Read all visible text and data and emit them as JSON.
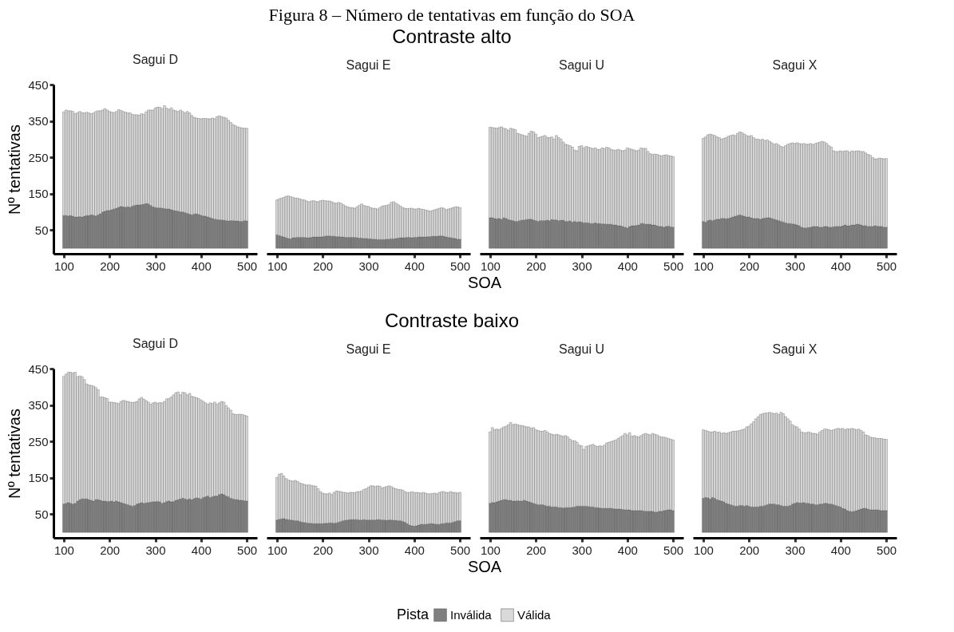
{
  "chart_data": [
    {
      "type": "bar",
      "stacked": true,
      "title": "Sagui D",
      "ylabel": "Nº tentativas",
      "legend": "bottom",
      "legend_title": "Pista",
      "annotations": [
        "Figura 8 – Número de tentativas em função do SOA",
        "Contraste alto",
        "SOA"
      ],
      "xlim": [
        77.5,
        522.5
      ],
      "xticks": [
        100,
        200,
        300,
        400,
        500
      ],
      "ylim": [
        -15,
        450
      ],
      "yticks": [
        50,
        150,
        250,
        350,
        450
      ],
      "x": [
        100,
        105,
        110,
        115,
        120,
        125,
        130,
        135,
        140,
        145,
        150,
        155,
        160,
        165,
        170,
        175,
        180,
        185,
        190,
        195,
        200,
        205,
        210,
        215,
        220,
        225,
        230,
        235,
        240,
        245,
        250,
        255,
        260,
        265,
        270,
        275,
        280,
        285,
        290,
        295,
        300,
        305,
        310,
        315,
        320,
        325,
        330,
        335,
        340,
        345,
        350,
        355,
        360,
        365,
        370,
        375,
        380,
        385,
        390,
        395,
        400,
        405,
        410,
        415,
        420,
        425,
        430,
        435,
        440,
        445,
        450,
        455,
        460,
        465,
        470,
        475,
        480,
        485,
        490,
        495,
        500
      ],
      "series": [
        {
          "name": "Inválida",
          "color": "#7f7f7f",
          "values": [
            90,
            90,
            89,
            90,
            88,
            86,
            86,
            87,
            86,
            88,
            90,
            90,
            92,
            91,
            89,
            92,
            95,
            100,
            102,
            104,
            104,
            106,
            108,
            110,
            113,
            115,
            114,
            113,
            114,
            113,
            116,
            118,
            119,
            119,
            120,
            121,
            123,
            122,
            118,
            114,
            112,
            111,
            111,
            110,
            109,
            108,
            108,
            106,
            104,
            103,
            102,
            100,
            100,
            98,
            96,
            94,
            92,
            94,
            95,
            93,
            91,
            89,
            88,
            86,
            84,
            82,
            80,
            79,
            78,
            78,
            77,
            76,
            75,
            76,
            76,
            75,
            75,
            74,
            74,
            76,
            75
          ]
        },
        {
          "name": "Válida",
          "color": "#d9d9d9",
          "values": [
            285,
            290,
            289,
            288,
            288,
            284,
            287,
            289,
            287,
            284,
            284,
            282,
            278,
            281,
            287,
            286,
            283,
            280,
            282,
            276,
            272,
            268,
            265,
            266,
            268,
            264,
            262,
            261,
            258,
            259,
            252,
            249,
            248,
            247,
            250,
            247,
            252,
            258,
            262,
            266,
            274,
            277,
            277,
            274,
            283,
            277,
            274,
            280,
            276,
            275,
            274,
            280,
            276,
            274,
            280,
            278,
            273,
            266,
            263,
            264,
            265,
            268,
            269,
            270,
            272,
            276,
            276,
            283,
            286,
            284,
            283,
            282,
            277,
            270,
            264,
            262,
            259,
            258,
            257,
            254,
            255
          ]
        }
      ]
    },
    {
      "type": "bar",
      "stacked": true,
      "title": "Sagui E",
      "tick_labels": "x",
      "xlim": [
        77.5,
        522.5
      ],
      "xticks": [
        100,
        200,
        300,
        400,
        500
      ],
      "ylim": [
        -15,
        450
      ],
      "x": [
        100,
        105,
        110,
        115,
        120,
        125,
        130,
        135,
        140,
        145,
        150,
        155,
        160,
        165,
        170,
        175,
        180,
        185,
        190,
        195,
        200,
        205,
        210,
        215,
        220,
        225,
        230,
        235,
        240,
        245,
        250,
        255,
        260,
        265,
        270,
        275,
        280,
        285,
        290,
        295,
        300,
        305,
        310,
        315,
        320,
        325,
        330,
        335,
        340,
        345,
        350,
        355,
        360,
        365,
        370,
        375,
        380,
        385,
        390,
        395,
        400,
        405,
        410,
        415,
        420,
        425,
        430,
        435,
        440,
        445,
        450,
        455,
        460,
        465,
        470,
        475,
        480,
        485,
        490,
        495,
        500
      ],
      "series": [
        {
          "name": "Inválida",
          "color": "#7f7f7f",
          "values": [
            37,
            35,
            33,
            31,
            29,
            27,
            26,
            29,
            29,
            30,
            30,
            30,
            30,
            29,
            29,
            30,
            31,
            31,
            31,
            31,
            32,
            33,
            34,
            34,
            33,
            33,
            32,
            32,
            31,
            31,
            30,
            30,
            30,
            30,
            30,
            29,
            28,
            28,
            27,
            27,
            26,
            26,
            25,
            25,
            24,
            24,
            24,
            24,
            25,
            25,
            26,
            26,
            27,
            28,
            29,
            29,
            29,
            30,
            30,
            29,
            30,
            30,
            31,
            31,
            31,
            31,
            32,
            32,
            33,
            33,
            33,
            34,
            34,
            33,
            31,
            30,
            29,
            28,
            27,
            25,
            25
          ]
        },
        {
          "name": "Válida",
          "color": "#d9d9d9",
          "values": [
            96,
            101,
            105,
            109,
            114,
            117,
            116,
            111,
            109,
            108,
            106,
            104,
            103,
            101,
            99,
            100,
            100,
            98,
            97,
            100,
            100,
            98,
            96,
            96,
            95,
            92,
            92,
            94,
            93,
            89,
            86,
            84,
            82,
            82,
            80,
            85,
            90,
            94,
            91,
            89,
            89,
            86,
            85,
            85,
            84,
            88,
            92,
            93,
            93,
            95,
            100,
            102,
            97,
            92,
            87,
            83,
            81,
            79,
            80,
            81,
            78,
            78,
            79,
            77,
            76,
            74,
            72,
            70,
            71,
            73,
            75,
            76,
            78,
            77,
            75,
            78,
            81,
            84,
            87,
            89,
            87
          ]
        }
      ]
    },
    {
      "type": "bar",
      "stacked": true,
      "title": "Sagui U",
      "tick_labels": "x",
      "xlim": [
        77.5,
        522.5
      ],
      "xticks": [
        100,
        200,
        300,
        400,
        500
      ],
      "ylim": [
        -15,
        450
      ],
      "x": [
        100,
        105,
        110,
        115,
        120,
        125,
        130,
        135,
        140,
        145,
        150,
        155,
        160,
        165,
        170,
        175,
        180,
        185,
        190,
        195,
        200,
        205,
        210,
        215,
        220,
        225,
        230,
        235,
        240,
        245,
        250,
        255,
        260,
        265,
        270,
        275,
        280,
        285,
        290,
        295,
        300,
        305,
        310,
        315,
        320,
        325,
        330,
        335,
        340,
        345,
        350,
        355,
        360,
        365,
        370,
        375,
        380,
        385,
        390,
        395,
        400,
        405,
        410,
        415,
        420,
        425,
        430,
        435,
        440,
        445,
        450,
        455,
        460,
        465,
        470,
        475,
        480,
        485,
        490,
        495,
        500
      ],
      "series": [
        {
          "name": "Inválida",
          "color": "#7f7f7f",
          "values": [
            84,
            84,
            82,
            81,
            82,
            80,
            84,
            82,
            79,
            77,
            76,
            74,
            74,
            76,
            77,
            78,
            79,
            80,
            80,
            78,
            76,
            74,
            76,
            76,
            76,
            77,
            76,
            79,
            78,
            78,
            76,
            77,
            77,
            74,
            74,
            75,
            72,
            74,
            72,
            73,
            72,
            70,
            70,
            70,
            68,
            68,
            70,
            68,
            68,
            67,
            67,
            66,
            66,
            66,
            64,
            64,
            62,
            62,
            60,
            58,
            56,
            60,
            62,
            62,
            63,
            64,
            68,
            68,
            66,
            66,
            66,
            64,
            64,
            62,
            60,
            60,
            58,
            60,
            61,
            59,
            58
          ]
        },
        {
          "name": "Válida",
          "color": "#d9d9d9",
          "values": [
            249,
            248,
            249,
            249,
            250,
            254,
            246,
            246,
            245,
            253,
            252,
            252,
            242,
            238,
            235,
            232,
            229,
            236,
            242,
            242,
            238,
            230,
            230,
            232,
            234,
            228,
            228,
            227,
            222,
            232,
            228,
            223,
            215,
            212,
            210,
            207,
            206,
            196,
            196,
            207,
            210,
            206,
            210,
            208,
            208,
            206,
            206,
            204,
            204,
            209,
            207,
            212,
            210,
            206,
            206,
            206,
            210,
            208,
            208,
            212,
            220,
            214,
            210,
            208,
            205,
            206,
            208,
            206,
            209,
            200,
            194,
            194,
            195,
            196,
            196,
            194,
            198,
            197,
            194,
            195,
            194
          ]
        }
      ]
    },
    {
      "type": "bar",
      "stacked": true,
      "title": "Sagui X",
      "tick_labels": "x",
      "xlim": [
        77.5,
        522.5
      ],
      "xticks": [
        100,
        200,
        300,
        400,
        500
      ],
      "ylim": [
        -15,
        450
      ],
      "x": [
        100,
        105,
        110,
        115,
        120,
        125,
        130,
        135,
        140,
        145,
        150,
        155,
        160,
        165,
        170,
        175,
        180,
        185,
        190,
        195,
        200,
        205,
        210,
        215,
        220,
        225,
        230,
        235,
        240,
        245,
        250,
        255,
        260,
        265,
        270,
        275,
        280,
        285,
        290,
        295,
        300,
        305,
        310,
        315,
        320,
        325,
        330,
        335,
        340,
        345,
        350,
        355,
        360,
        365,
        370,
        375,
        380,
        385,
        390,
        395,
        400,
        405,
        410,
        415,
        420,
        425,
        430,
        435,
        440,
        445,
        450,
        455,
        460,
        465,
        470,
        475,
        480,
        485,
        490,
        495,
        500
      ],
      "series": [
        {
          "name": "Inválida",
          "color": "#7f7f7f",
          "values": [
            74,
            72,
            76,
            78,
            76,
            78,
            80,
            80,
            82,
            82,
            81,
            82,
            84,
            86,
            88,
            90,
            92,
            90,
            88,
            86,
            86,
            84,
            82,
            82,
            82,
            80,
            82,
            83,
            84,
            84,
            82,
            80,
            78,
            76,
            74,
            72,
            70,
            68,
            68,
            67,
            66,
            64,
            62,
            58,
            56,
            56,
            57,
            58,
            60,
            60,
            60,
            58,
            58,
            60,
            60,
            58,
            58,
            59,
            60,
            60,
            60,
            62,
            64,
            62,
            62,
            64,
            64,
            66,
            66,
            64,
            62,
            62,
            60,
            60,
            60,
            62,
            61,
            60,
            60,
            58,
            58
          ]
        },
        {
          "name": "Válida",
          "color": "#d9d9d9",
          "values": [
            228,
            234,
            236,
            236,
            236,
            232,
            226,
            224,
            218,
            220,
            223,
            226,
            226,
            226,
            222,
            226,
            228,
            228,
            226,
            224,
            222,
            226,
            222,
            218,
            218,
            218,
            218,
            213,
            214,
            210,
            208,
            206,
            210,
            208,
            206,
            206,
            212,
            218,
            220,
            223,
            222,
            226,
            226,
            229,
            232,
            230,
            229,
            230,
            225,
            228,
            230,
            234,
            236,
            232,
            228,
            224,
            220,
            209,
            206,
            206,
            208,
            204,
            204,
            206,
            202,
            204,
            202,
            202,
            202,
            202,
            204,
            200,
            198,
            196,
            190,
            184,
            185,
            188,
            187,
            188,
            189
          ]
        }
      ]
    },
    {
      "type": "bar",
      "stacked": true,
      "title": "Sagui D",
      "ylabel": "Nº tentativas",
      "annotations": [
        "Contraste baixo",
        "SOA"
      ],
      "xlim": [
        77.5,
        522.5
      ],
      "xticks": [
        100,
        200,
        300,
        400,
        500
      ],
      "ylim": [
        -15,
        450
      ],
      "yticks": [
        50,
        150,
        250,
        350,
        450
      ],
      "x": [
        100,
        105,
        110,
        115,
        120,
        125,
        130,
        135,
        140,
        145,
        150,
        155,
        160,
        165,
        170,
        175,
        180,
        185,
        190,
        195,
        200,
        205,
        210,
        215,
        220,
        225,
        230,
        235,
        240,
        245,
        250,
        255,
        260,
        265,
        270,
        275,
        280,
        285,
        290,
        295,
        300,
        305,
        310,
        315,
        320,
        325,
        330,
        335,
        340,
        345,
        350,
        355,
        360,
        365,
        370,
        375,
        380,
        385,
        390,
        395,
        400,
        405,
        410,
        415,
        420,
        425,
        430,
        435,
        440,
        445,
        450,
        455,
        460,
        465,
        470,
        475,
        480,
        485,
        490,
        495,
        500
      ],
      "series": [
        {
          "name": "Inválida",
          "color": "#7f7f7f",
          "values": [
            78,
            80,
            82,
            80,
            78,
            80,
            86,
            90,
            92,
            92,
            92,
            90,
            88,
            86,
            90,
            90,
            88,
            86,
            86,
            85,
            85,
            86,
            84,
            86,
            84,
            82,
            80,
            78,
            76,
            74,
            72,
            74,
            78,
            80,
            82,
            80,
            81,
            82,
            83,
            84,
            84,
            85,
            84,
            80,
            82,
            85,
            86,
            84,
            85,
            88,
            90,
            92,
            94,
            92,
            90,
            92,
            90,
            93,
            95,
            94,
            92,
            96,
            98,
            100,
            96,
            98,
            100,
            100,
            104,
            106,
            104,
            100,
            98,
            94,
            92,
            90,
            90,
            88,
            88,
            87,
            86
          ]
        },
        {
          "name": "Válida",
          "color": "#d9d9d9",
          "values": [
            351,
            355,
            358,
            360,
            360,
            360,
            342,
            340,
            336,
            328,
            316,
            315,
            316,
            316,
            308,
            302,
            284,
            286,
            284,
            283,
            273,
            272,
            273,
            270,
            270,
            278,
            283,
            283,
            284,
            284,
            285,
            284,
            282,
            287,
            289,
            286,
            281,
            276,
            269,
            272,
            274,
            270,
            273,
            276,
            278,
            282,
            282,
            288,
            293,
            296,
            296,
            286,
            291,
            292,
            288,
            290,
            284,
            279,
            275,
            274,
            272,
            264,
            258,
            252,
            260,
            256,
            258,
            252,
            252,
            254,
            254,
            248,
            244,
            242,
            234,
            234,
            234,
            237,
            236,
            235,
            234
          ]
        }
      ]
    },
    {
      "type": "bar",
      "stacked": true,
      "title": "Sagui E",
      "tick_labels": "x",
      "xlim": [
        77.5,
        522.5
      ],
      "xticks": [
        100,
        200,
        300,
        400,
        500
      ],
      "ylim": [
        -15,
        450
      ],
      "x": [
        100,
        105,
        110,
        115,
        120,
        125,
        130,
        135,
        140,
        145,
        150,
        155,
        160,
        165,
        170,
        175,
        180,
        185,
        190,
        195,
        200,
        205,
        210,
        215,
        220,
        225,
        230,
        235,
        240,
        245,
        250,
        255,
        260,
        265,
        270,
        275,
        280,
        285,
        290,
        295,
        300,
        305,
        310,
        315,
        320,
        325,
        330,
        335,
        340,
        345,
        350,
        355,
        360,
        365,
        370,
        375,
        380,
        385,
        390,
        395,
        400,
        405,
        410,
        415,
        420,
        425,
        430,
        435,
        440,
        445,
        450,
        455,
        460,
        465,
        470,
        475,
        480,
        485,
        490,
        495,
        500
      ],
      "series": [
        {
          "name": "Inválida",
          "color": "#7f7f7f",
          "values": [
            34,
            36,
            37,
            38,
            36,
            35,
            34,
            33,
            32,
            32,
            30,
            28,
            27,
            26,
            25,
            25,
            24,
            24,
            24,
            24,
            24,
            25,
            25,
            26,
            26,
            25,
            26,
            28,
            30,
            32,
            33,
            34,
            35,
            35,
            35,
            35,
            34,
            34,
            35,
            34,
            34,
            34,
            34,
            34,
            35,
            35,
            34,
            34,
            33,
            34,
            34,
            33,
            33,
            32,
            32,
            30,
            28,
            24,
            20,
            18,
            17,
            18,
            20,
            22,
            22,
            22,
            23,
            24,
            24,
            23,
            22,
            22,
            24,
            24,
            26,
            26,
            26,
            28,
            30,
            32,
            32
          ]
        },
        {
          "name": "Válida",
          "color": "#d9d9d9",
          "values": [
            117,
            124,
            125,
            117,
            112,
            109,
            108,
            108,
            111,
            108,
            106,
            106,
            105,
            104,
            106,
            104,
            104,
            103,
            96,
            88,
            84,
            81,
            81,
            82,
            78,
            85,
            88,
            85,
            82,
            78,
            77,
            74,
            75,
            75,
            74,
            77,
            78,
            80,
            83,
            86,
            90,
            94,
            94,
            92,
            93,
            92,
            88,
            90,
            93,
            94,
            92,
            89,
            87,
            86,
            86,
            86,
            84,
            86,
            90,
            94,
            93,
            92,
            89,
            86,
            88,
            86,
            83,
            82,
            83,
            85,
            84,
            88,
            88,
            88,
            84,
            84,
            86,
            82,
            80,
            76,
            78
          ]
        }
      ]
    },
    {
      "type": "bar",
      "stacked": true,
      "title": "Sagui U",
      "tick_labels": "x",
      "xlim": [
        77.5,
        522.5
      ],
      "xticks": [
        100,
        200,
        300,
        400,
        500
      ],
      "ylim": [
        -15,
        450
      ],
      "x": [
        100,
        105,
        110,
        115,
        120,
        125,
        130,
        135,
        140,
        145,
        150,
        155,
        160,
        165,
        170,
        175,
        180,
        185,
        190,
        195,
        200,
        205,
        210,
        215,
        220,
        225,
        230,
        235,
        240,
        245,
        250,
        255,
        260,
        265,
        270,
        275,
        280,
        285,
        290,
        295,
        300,
        305,
        310,
        315,
        320,
        325,
        330,
        335,
        340,
        345,
        350,
        355,
        360,
        365,
        370,
        375,
        380,
        385,
        390,
        395,
        400,
        405,
        410,
        415,
        420,
        425,
        430,
        435,
        440,
        445,
        450,
        455,
        460,
        465,
        470,
        475,
        480,
        485,
        490,
        495,
        500
      ],
      "series": [
        {
          "name": "Inválida",
          "color": "#7f7f7f",
          "values": [
            80,
            82,
            82,
            84,
            86,
            88,
            90,
            90,
            88,
            88,
            86,
            86,
            87,
            86,
            86,
            88,
            86,
            84,
            82,
            80,
            78,
            76,
            76,
            76,
            74,
            72,
            72,
            70,
            70,
            70,
            68,
            68,
            67,
            68,
            68,
            68,
            69,
            70,
            72,
            72,
            72,
            72,
            72,
            71,
            70,
            70,
            68,
            68,
            67,
            66,
            66,
            66,
            66,
            66,
            65,
            64,
            64,
            64,
            63,
            62,
            62,
            62,
            60,
            60,
            60,
            60,
            60,
            59,
            58,
            58,
            58,
            58,
            56,
            56,
            58,
            58,
            60,
            61,
            62,
            62,
            60
          ]
        },
        {
          "name": "Válida",
          "color": "#d9d9d9",
          "values": [
            196,
            206,
            200,
            200,
            196,
            198,
            200,
            202,
            208,
            214,
            210,
            212,
            209,
            208,
            208,
            204,
            204,
            206,
            204,
            208,
            204,
            204,
            202,
            202,
            206,
            204,
            200,
            200,
            198,
            200,
            200,
            198,
            197,
            198,
            194,
            188,
            183,
            182,
            176,
            168,
            166,
            156,
            164,
            167,
            170,
            172,
            170,
            168,
            171,
            170,
            174,
            180,
            182,
            184,
            187,
            190,
            194,
            198,
            203,
            210,
            206,
            212,
            204,
            206,
            204,
            202,
            206,
            211,
            214,
            212,
            210,
            214,
            214,
            212,
            206,
            204,
            202,
            199,
            196,
            194,
            194
          ]
        }
      ]
    },
    {
      "type": "bar",
      "stacked": true,
      "title": "Sagui X",
      "tick_labels": "x",
      "xlim": [
        77.5,
        522.5
      ],
      "xticks": [
        100,
        200,
        300,
        400,
        500
      ],
      "ylim": [
        -15,
        450
      ],
      "x": [
        100,
        105,
        110,
        115,
        120,
        125,
        130,
        135,
        140,
        145,
        150,
        155,
        160,
        165,
        170,
        175,
        180,
        185,
        190,
        195,
        200,
        205,
        210,
        215,
        220,
        225,
        230,
        235,
        240,
        245,
        250,
        255,
        260,
        265,
        270,
        275,
        280,
        285,
        290,
        295,
        300,
        305,
        310,
        315,
        320,
        325,
        330,
        335,
        340,
        345,
        350,
        355,
        360,
        365,
        370,
        375,
        380,
        385,
        390,
        395,
        400,
        405,
        410,
        415,
        420,
        425,
        430,
        435,
        440,
        445,
        450,
        455,
        460,
        465,
        470,
        475,
        480,
        485,
        490,
        495,
        500
      ],
      "series": [
        {
          "name": "Inválida",
          "color": "#7f7f7f",
          "values": [
            94,
            96,
            95,
            92,
            96,
            94,
            90,
            88,
            86,
            84,
            80,
            78,
            76,
            74,
            72,
            72,
            74,
            74,
            72,
            74,
            72,
            70,
            70,
            70,
            70,
            72,
            72,
            74,
            76,
            78,
            78,
            78,
            76,
            76,
            74,
            72,
            72,
            72,
            74,
            78,
            80,
            82,
            81,
            81,
            82,
            80,
            80,
            78,
            78,
            76,
            76,
            78,
            78,
            80,
            80,
            78,
            78,
            76,
            74,
            72,
            70,
            66,
            64,
            60,
            58,
            57,
            58,
            60,
            62,
            64,
            66,
            66,
            64,
            62,
            62,
            62,
            62,
            61,
            60,
            60,
            60
          ]
        },
        {
          "name": "Válida",
          "color": "#d9d9d9",
          "values": [
            188,
            184,
            183,
            184,
            180,
            184,
            185,
            188,
            186,
            190,
            192,
            196,
            200,
            204,
            206,
            207,
            206,
            208,
            212,
            216,
            220,
            228,
            234,
            242,
            248,
            252,
            254,
            254,
            252,
            252,
            250,
            248,
            252,
            248,
            256,
            254,
            246,
            240,
            232,
            218,
            212,
            208,
            203,
            195,
            192,
            194,
            196,
            196,
            194,
            196,
            194,
            198,
            202,
            204,
            204,
            204,
            202,
            206,
            210,
            214,
            214,
            220,
            218,
            225,
            226,
            229,
            226,
            222,
            222,
            216,
            210,
            202,
            202,
            200,
            198,
            198,
            196,
            197,
            198,
            196,
            196
          ]
        }
      ]
    }
  ]
}
